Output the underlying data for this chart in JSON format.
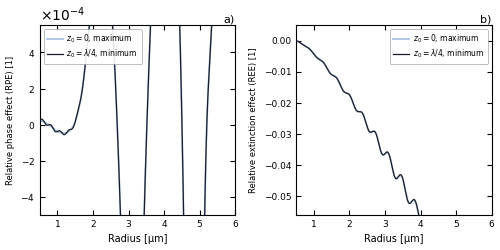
{
  "title_a": "a)",
  "title_b": "b)",
  "xlabel": "Radius [μm]",
  "ylabel_a": "Relative phase effect (RPE) [1]",
  "ylabel_b": "Relative extinction effect (REE) [1]",
  "legend_label1": "$z_0 = 0$, maximum",
  "legend_label2": "$z_0 = \\lambda/4$, minimum",
  "color1": "#a8c4e0",
  "color2": "#1c1c28",
  "xlim": [
    0.5,
    6.0
  ],
  "ylim_a": [
    -0.0005,
    0.00055
  ],
  "ylim_b": [
    -0.056,
    0.005
  ],
  "yticks_a": [
    -0.0004,
    -0.0002,
    0,
    0.0002,
    0.0004
  ],
  "yticks_b": [
    -0.05,
    -0.04,
    -0.03,
    -0.02,
    -0.01,
    0
  ],
  "xticks": [
    1,
    2,
    3,
    4,
    5,
    6
  ]
}
